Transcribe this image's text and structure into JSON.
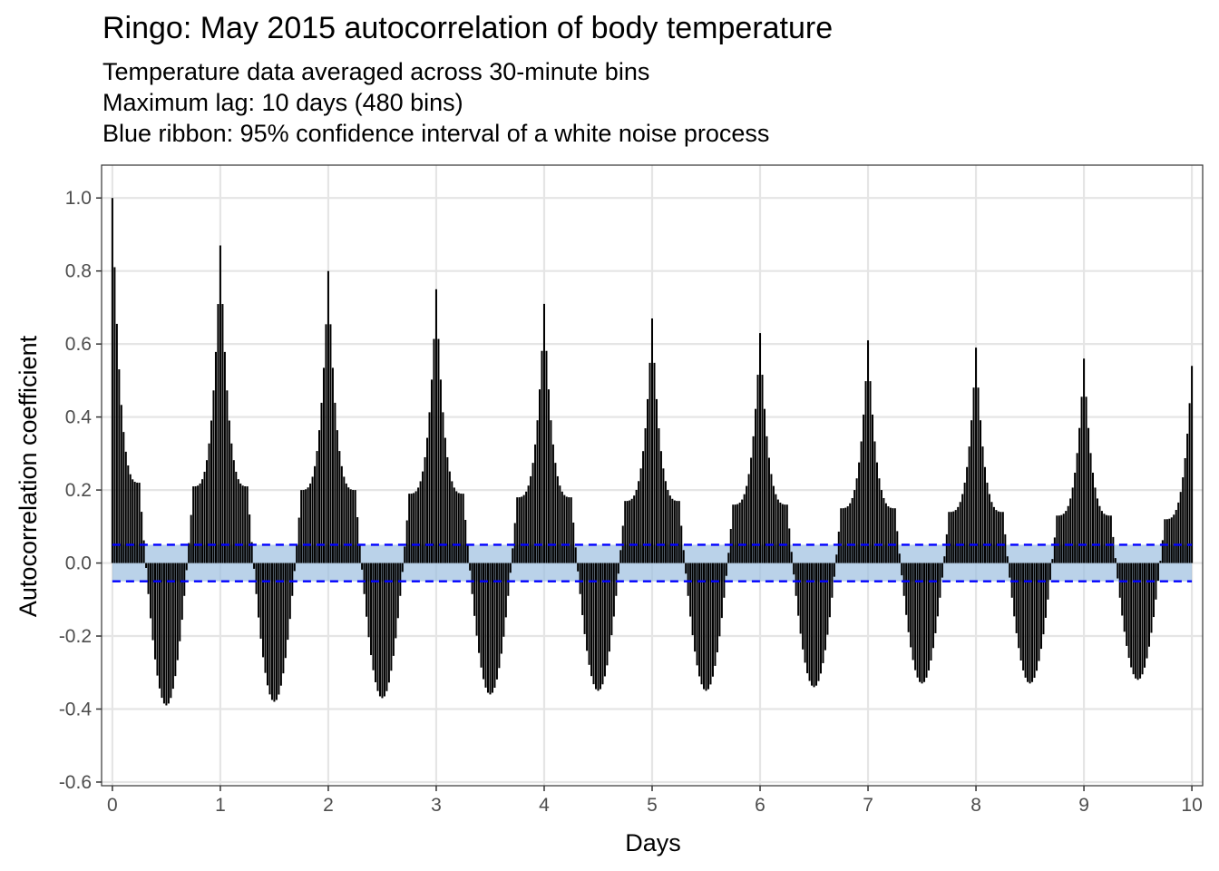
{
  "chart_data": {
    "type": "bar",
    "title": "Ringo: May 2015 autocorrelation of body temperature",
    "subtitle": [
      "Temperature data averaged across 30-minute bins",
      "Maximum lag: 10 days (480 bins)",
      "Blue ribbon: 95% confidence interval of a white noise process"
    ],
    "xlabel": "Days",
    "ylabel": "Autocorrelation coefficient",
    "xlim": [
      0,
      10
    ],
    "ylim": [
      -0.6,
      1.0
    ],
    "x_ticks": [
      "0",
      "1",
      "2",
      "3",
      "4",
      "5",
      "6",
      "7",
      "8",
      "9",
      "10"
    ],
    "y_ticks": [
      "-0.6",
      "-0.4",
      "-0.2",
      "0.0",
      "0.2",
      "0.4",
      "0.6",
      "0.8",
      "1.0"
    ],
    "lag_bins": 480,
    "bins_per_day": 48,
    "confidence_band": [
      -0.05,
      0.05
    ],
    "colors": {
      "bar": "#000000",
      "ribbon": "#9dbfe0",
      "dashed": "#0000ff",
      "grid": "#e5e5e5"
    },
    "daily_peak_values": [
      1.0,
      0.87,
      0.8,
      0.75,
      0.71,
      0.67,
      0.63,
      0.61,
      0.59,
      0.56,
      0.54
    ],
    "daily_trough_values": [
      -0.39,
      -0.38,
      -0.37,
      -0.36,
      -0.35,
      -0.35,
      -0.34,
      -0.33,
      -0.33,
      -0.32
    ],
    "shoulder_values_near_peaks": [
      0.22,
      0.21,
      0.2,
      0.19,
      0.18,
      0.17,
      0.16,
      0.15,
      0.14,
      0.13,
      0.12
    ],
    "grid": true,
    "legend": "none"
  }
}
